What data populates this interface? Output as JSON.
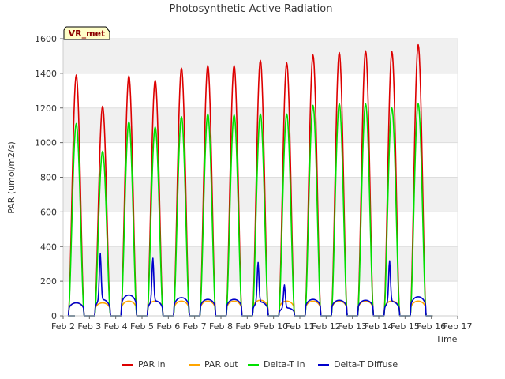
{
  "chart_data": {
    "type": "line",
    "title": "Photosynthetic Active Radiation",
    "xlabel": "Time",
    "ylabel": "PAR (umol/m2/s)",
    "badge": "VR_met",
    "xlim": [
      2,
      17
    ],
    "ylim": [
      0,
      1600
    ],
    "x_ticks": [
      2,
      3,
      4,
      5,
      6,
      7,
      8,
      9,
      10,
      11,
      12,
      13,
      14,
      15,
      16,
      17
    ],
    "x_tick_labels": [
      "Feb 2",
      "Feb 3",
      "Feb 4",
      "Feb 5",
      "Feb 6",
      "Feb 7",
      "Feb 8",
      "Feb 9",
      "Feb 10",
      "Feb 11",
      "Feb 12",
      "Feb 13",
      "Feb 14",
      "Feb 15",
      "Feb 16",
      "Feb 17"
    ],
    "y_ticks": [
      0,
      200,
      400,
      600,
      800,
      1000,
      1200,
      1400,
      1600
    ],
    "y_tick_labels": [
      "0",
      "200",
      "400",
      "600",
      "800",
      "1000",
      "1200",
      "1400",
      "1600"
    ],
    "grid": true,
    "legend_position": "bottom",
    "days": [
      2.5,
      3.5,
      4.5,
      5.5,
      6.5,
      7.5,
      8.5,
      9.5,
      10.5,
      11.5,
      12.5,
      13.5,
      14.5,
      15.5
    ],
    "series": [
      {
        "name": "PAR in",
        "color": "#dd0000",
        "peaks": [
          1390,
          1210,
          1385,
          1360,
          1430,
          1445,
          1445,
          1475,
          1460,
          1505,
          1520,
          1530,
          1525,
          1565
        ]
      },
      {
        "name": "PAR out",
        "color": "#ffa500",
        "peaks": [
          75,
          75,
          85,
          85,
          85,
          85,
          85,
          90,
          85,
          85,
          85,
          85,
          85,
          85
        ]
      },
      {
        "name": "Delta-T in",
        "color": "#00e000",
        "peaks": [
          1110,
          950,
          1120,
          1090,
          1150,
          1165,
          1160,
          1165,
          1165,
          1215,
          1225,
          1225,
          1200,
          1225
        ]
      },
      {
        "name": "Delta-T Diffuse",
        "color": "#0000cc",
        "peaks": [
          75,
          375,
          120,
          345,
          105,
          95,
          95,
          320,
          185,
          95,
          90,
          90,
          330,
          110
        ]
      }
    ]
  }
}
